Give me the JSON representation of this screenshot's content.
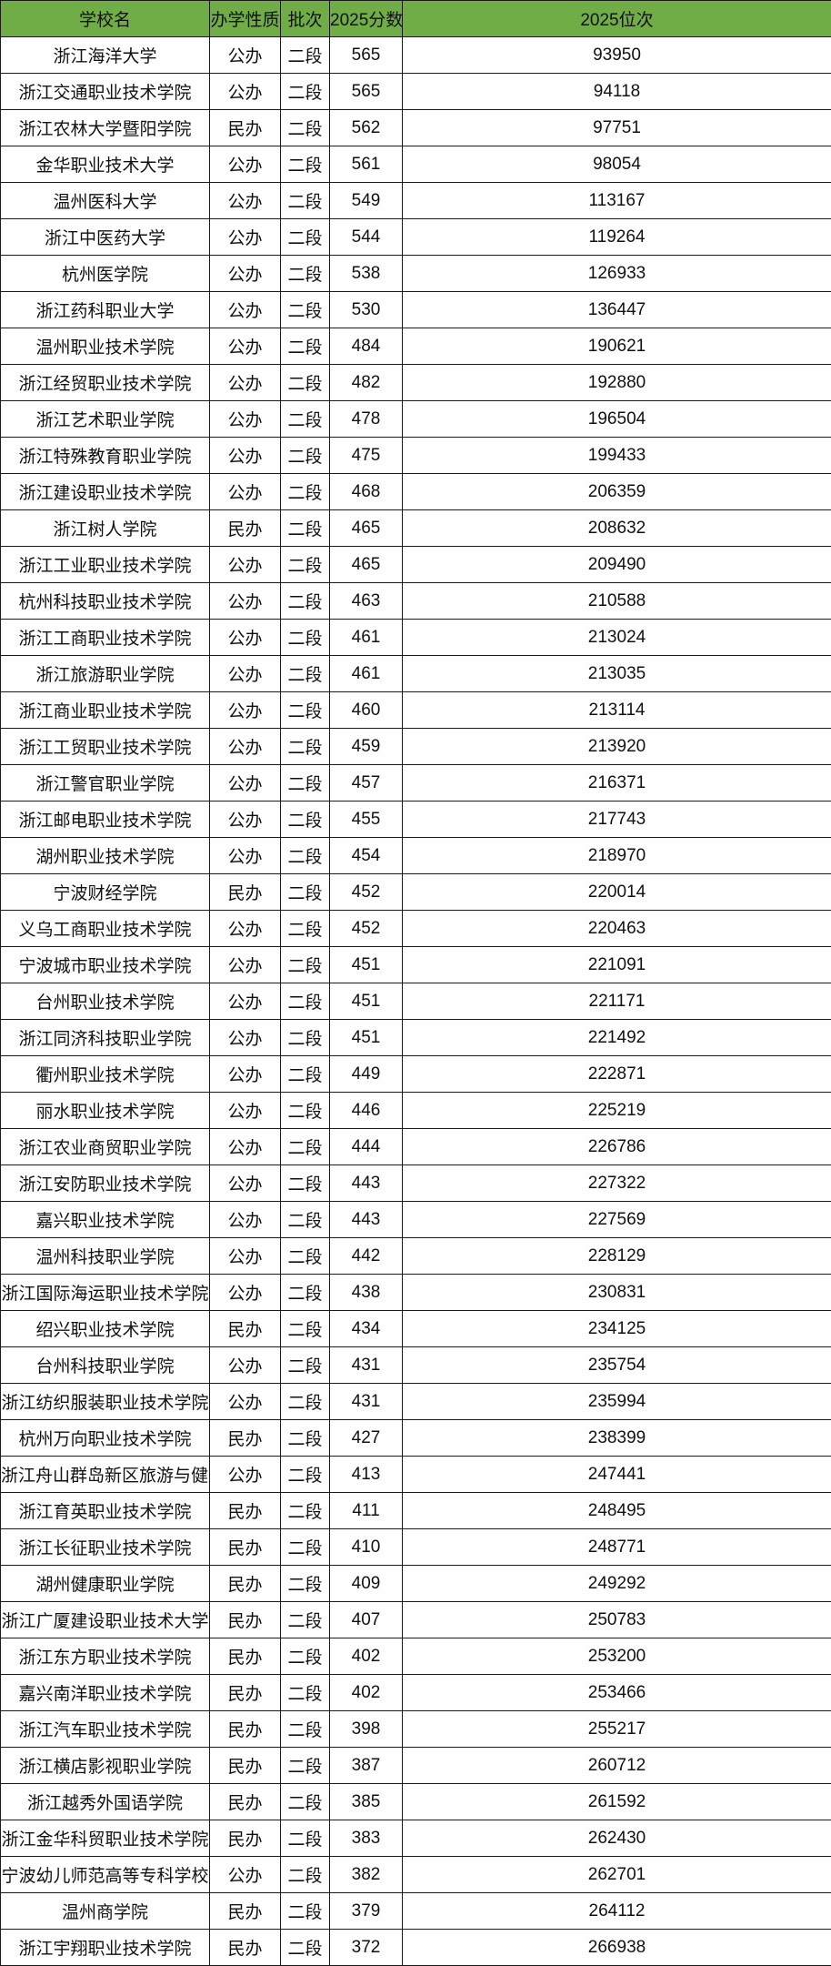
{
  "header_color": "#70ad47",
  "columns": [
    "学校名",
    "办学性质",
    "批次",
    "2025分数",
    "2025位次"
  ],
  "rows": [
    [
      "浙江海洋大学",
      "公办",
      "二段",
      "565",
      "93950"
    ],
    [
      "浙江交通职业技术学院",
      "公办",
      "二段",
      "565",
      "94118"
    ],
    [
      "浙江农林大学暨阳学院",
      "民办",
      "二段",
      "562",
      "97751"
    ],
    [
      "金华职业技术大学",
      "公办",
      "二段",
      "561",
      "98054"
    ],
    [
      "温州医科大学",
      "公办",
      "二段",
      "549",
      "113167"
    ],
    [
      "浙江中医药大学",
      "公办",
      "二段",
      "544",
      "119264"
    ],
    [
      "杭州医学院",
      "公办",
      "二段",
      "538",
      "126933"
    ],
    [
      "浙江药科职业大学",
      "公办",
      "二段",
      "530",
      "136447"
    ],
    [
      "温州职业技术学院",
      "公办",
      "二段",
      "484",
      "190621"
    ],
    [
      "浙江经贸职业技术学院",
      "公办",
      "二段",
      "482",
      "192880"
    ],
    [
      "浙江艺术职业学院",
      "公办",
      "二段",
      "478",
      "196504"
    ],
    [
      "浙江特殊教育职业学院",
      "公办",
      "二段",
      "475",
      "199433"
    ],
    [
      "浙江建设职业技术学院",
      "公办",
      "二段",
      "468",
      "206359"
    ],
    [
      "浙江树人学院",
      "民办",
      "二段",
      "465",
      "208632"
    ],
    [
      "浙江工业职业技术学院",
      "公办",
      "二段",
      "465",
      "209490"
    ],
    [
      "杭州科技职业技术学院",
      "公办",
      "二段",
      "463",
      "210588"
    ],
    [
      "浙江工商职业技术学院",
      "公办",
      "二段",
      "461",
      "213024"
    ],
    [
      "浙江旅游职业学院",
      "公办",
      "二段",
      "461",
      "213035"
    ],
    [
      "浙江商业职业技术学院",
      "公办",
      "二段",
      "460",
      "213114"
    ],
    [
      "浙江工贸职业技术学院",
      "公办",
      "二段",
      "459",
      "213920"
    ],
    [
      "浙江警官职业学院",
      "公办",
      "二段",
      "457",
      "216371"
    ],
    [
      "浙江邮电职业技术学院",
      "公办",
      "二段",
      "455",
      "217743"
    ],
    [
      "湖州职业技术学院",
      "公办",
      "二段",
      "454",
      "218970"
    ],
    [
      "宁波财经学院",
      "民办",
      "二段",
      "452",
      "220014"
    ],
    [
      "义乌工商职业技术学院",
      "公办",
      "二段",
      "452",
      "220463"
    ],
    [
      "宁波城市职业技术学院",
      "公办",
      "二段",
      "451",
      "221091"
    ],
    [
      "台州职业技术学院",
      "公办",
      "二段",
      "451",
      "221171"
    ],
    [
      "浙江同济科技职业学院",
      "公办",
      "二段",
      "451",
      "221492"
    ],
    [
      "衢州职业技术学院",
      "公办",
      "二段",
      "449",
      "222871"
    ],
    [
      "丽水职业技术学院",
      "公办",
      "二段",
      "446",
      "225219"
    ],
    [
      "浙江农业商贸职业学院",
      "公办",
      "二段",
      "444",
      "226786"
    ],
    [
      "浙江安防职业技术学院",
      "公办",
      "二段",
      "443",
      "227322"
    ],
    [
      "嘉兴职业技术学院",
      "公办",
      "二段",
      "443",
      "227569"
    ],
    [
      "温州科技职业学院",
      "公办",
      "二段",
      "442",
      "228129"
    ],
    [
      "浙江国际海运职业技术学院",
      "公办",
      "二段",
      "438",
      "230831"
    ],
    [
      "绍兴职业技术学院",
      "民办",
      "二段",
      "434",
      "234125"
    ],
    [
      "台州科技职业学院",
      "公办",
      "二段",
      "431",
      "235754"
    ],
    [
      "浙江纺织服装职业技术学院",
      "公办",
      "二段",
      "431",
      "235994"
    ],
    [
      "杭州万向职业技术学院",
      "民办",
      "二段",
      "427",
      "238399"
    ],
    [
      "浙江舟山群岛新区旅游与健康职业学院",
      "公办",
      "二段",
      "413",
      "247441"
    ],
    [
      "浙江育英职业技术学院",
      "民办",
      "二段",
      "411",
      "248495"
    ],
    [
      "浙江长征职业技术学院",
      "民办",
      "二段",
      "410",
      "248771"
    ],
    [
      "湖州健康职业学院",
      "民办",
      "二段",
      "409",
      "249292"
    ],
    [
      "浙江广厦建设职业技术大学",
      "民办",
      "二段",
      "407",
      "250783"
    ],
    [
      "浙江东方职业技术学院",
      "民办",
      "二段",
      "402",
      "253200"
    ],
    [
      "嘉兴南洋职业技术学院",
      "民办",
      "二段",
      "402",
      "253466"
    ],
    [
      "浙江汽车职业技术学院",
      "民办",
      "二段",
      "398",
      "255217"
    ],
    [
      "浙江横店影视职业学院",
      "民办",
      "二段",
      "387",
      "260712"
    ],
    [
      "浙江越秀外国语学院",
      "民办",
      "二段",
      "385",
      "261592"
    ],
    [
      "浙江金华科贸职业技术学院",
      "民办",
      "二段",
      "383",
      "262430"
    ],
    [
      "宁波幼儿师范高等专科学校",
      "公办",
      "二段",
      "382",
      "262701"
    ],
    [
      "温州商学院",
      "民办",
      "二段",
      "379",
      "264112"
    ],
    [
      "浙江宇翔职业技术学院",
      "民办",
      "二段",
      "372",
      "266938"
    ]
  ]
}
